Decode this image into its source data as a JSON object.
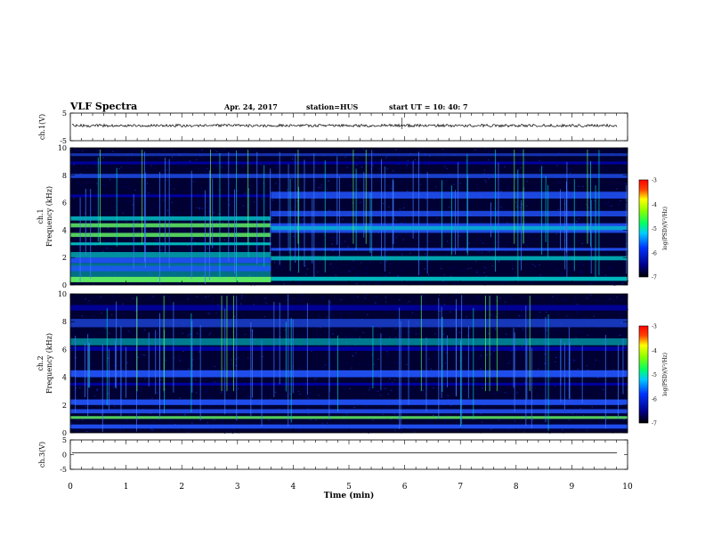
{
  "header": {
    "title": "VLF Spectra",
    "date": "Apr. 24, 2017",
    "station": "station=HUS",
    "start_time": "start  UT =   10: 40: 7"
  },
  "chart_data": [
    {
      "type": "line",
      "panel": "ch1-waveform",
      "ylabel": "ch.1(V)",
      "ylim": [
        -5,
        5
      ],
      "yticks": [
        "5",
        "-5"
      ],
      "xlim": [
        0,
        10
      ],
      "series": [
        {
          "values_description": "near-constant noise trace around y≈0"
        }
      ]
    },
    {
      "type": "heatmap",
      "panel": "ch1-spectrogram",
      "ylabel": "ch.1\nFrequency (kHz)",
      "ylim": [
        0,
        10
      ],
      "yticks": [
        "0",
        "2",
        "4",
        "6",
        "8",
        "10"
      ],
      "xlim": [
        0,
        10
      ],
      "colorbar": {
        "label": "log(PSD)(V²/Hz)",
        "range": [
          -7,
          -3
        ],
        "ticks": [
          "-3",
          "-4",
          "-5",
          "-6",
          "-7"
        ]
      },
      "level_change_at_min": 3.6
    },
    {
      "type": "heatmap",
      "panel": "ch2-spectrogram",
      "ylabel": "ch.2\nFrequency (kHz)",
      "ylim": [
        0,
        10
      ],
      "yticks": [
        "0",
        "2",
        "4",
        "6",
        "8",
        "10"
      ],
      "xlim": [
        0,
        10
      ],
      "colorbar": {
        "label": "log(PSD)(V²/Hz)",
        "range": [
          -7,
          -3
        ],
        "ticks": [
          "-3",
          "-4",
          "-5",
          "-6",
          "-7"
        ]
      }
    },
    {
      "type": "line",
      "panel": "ch3-waveform",
      "ylabel": "ch.3(V)",
      "ylim": [
        -5,
        5
      ],
      "yticks": [
        "5",
        "0",
        "-5"
      ],
      "xlim": [
        0,
        10
      ],
      "series": [
        {
          "values_description": "flat line at y≈0"
        }
      ]
    }
  ],
  "xaxis": {
    "label": "Time  (min)",
    "ticks": [
      "0",
      "1",
      "2",
      "3",
      "4",
      "5",
      "6",
      "7",
      "8",
      "9",
      "10"
    ],
    "range": [
      0,
      10
    ]
  },
  "colors": {
    "background": "#000033",
    "band_low": "#0000aa",
    "band_mid": "#2255ff",
    "band_high": "#00cccc",
    "band_peak": "#66ff66"
  }
}
